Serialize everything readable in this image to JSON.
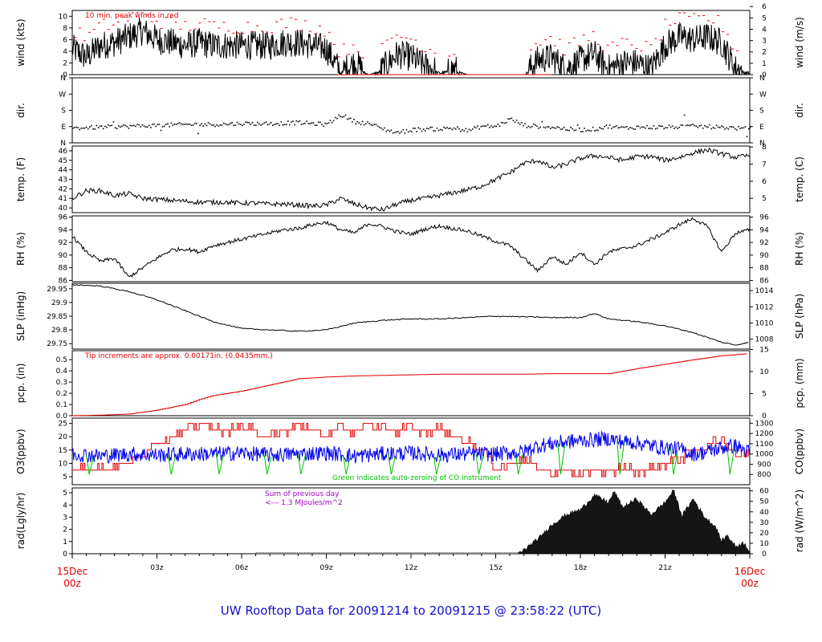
{
  "footer": "UW Rooftop Data for 20091214  to  20091215 @ 23:58:22  (UTC)",
  "x_axis": {
    "start_label": [
      "15Dec",
      "00z"
    ],
    "end_label": [
      "16Dec",
      "00z"
    ],
    "tick_labels": [
      "03z",
      "06z",
      "09z",
      "12z",
      "15z",
      "18z",
      "21z"
    ],
    "hours": [
      3,
      6,
      9,
      12,
      15,
      18,
      21
    ],
    "range_hours": [
      0,
      24
    ]
  },
  "colors": {
    "red": "#e00000",
    "blue": "#0000ee",
    "green": "#00c000",
    "purple": "#a000c0",
    "black": "#000000"
  },
  "chart_data": [
    {
      "id": "wind",
      "type": "line",
      "ylabel": "wind (kts)",
      "ylabel_right": "wind (m/s)",
      "ylim": [
        0,
        11
      ],
      "yticks": [
        0,
        2,
        4,
        6,
        8,
        10
      ],
      "yticks_right": [
        0,
        1,
        2,
        3,
        4,
        5,
        6
      ],
      "annotation": "10 min. peak winds in red",
      "series": [
        {
          "hours": [
            0,
            0.5,
            1,
            1.5,
            2,
            2.5,
            3,
            3.5,
            4,
            4.5,
            5,
            5.5,
            6,
            6.5,
            7,
            7.5,
            8,
            8.5,
            9,
            9.5,
            10,
            10.5,
            11,
            11.5,
            12,
            12.5,
            13,
            13.5,
            14,
            14.5,
            15,
            15.5,
            16,
            16.5,
            17,
            17.5,
            18,
            18.5,
            19,
            19.5,
            20,
            20.5,
            21,
            21.5,
            22,
            22.5,
            23,
            23.5,
            24
          ],
          "values": [
            4.5,
            3,
            5,
            5.5,
            6.5,
            7.5,
            6,
            5.5,
            5,
            5.5,
            5,
            5,
            5,
            5,
            5,
            5.5,
            5.5,
            5,
            4.5,
            0.5,
            2,
            0,
            1,
            3.5,
            3,
            1.5,
            0.5,
            1,
            0,
            0,
            0,
            0,
            0,
            2.5,
            3,
            1,
            2.5,
            3.5,
            1,
            2,
            2,
            1,
            5,
            6.5,
            6,
            6.5,
            5.5,
            1,
            0.5
          ]
        }
      ]
    },
    {
      "id": "dir",
      "type": "scatter",
      "ylabel": "dir.",
      "ylabel_right": "dir.",
      "ytick_labels": [
        "N",
        "E",
        "S",
        "W",
        "N"
      ],
      "series": [
        {
          "hours": [
            0,
            1,
            2,
            3,
            4,
            5,
            6,
            7,
            8,
            9,
            9.5,
            10,
            10.5,
            11,
            11.5,
            12,
            12.5,
            13,
            13.5,
            14,
            14.5,
            15,
            15.5,
            16,
            16.5,
            17,
            17.5,
            18,
            18.5,
            19,
            19.5,
            20,
            21,
            22,
            23,
            24
          ],
          "values": [
            85,
            90,
            95,
            100,
            105,
            105,
            110,
            110,
            115,
            105,
            160,
            120,
            110,
            80,
            60,
            75,
            80,
            80,
            85,
            70,
            95,
            95,
            135,
            100,
            95,
            90,
            80,
            75,
            80,
            95,
            85,
            90,
            90,
            95,
            90,
            80
          ]
        }
      ]
    },
    {
      "id": "temp",
      "type": "line",
      "ylabel": "temp. (F)",
      "ylabel_right": "temp. (C)",
      "ylim": [
        39.5,
        46.5
      ],
      "yticks": [
        40,
        41,
        42,
        43,
        44,
        45,
        46
      ],
      "yticks_right": [
        5,
        6,
        7,
        8
      ],
      "series": [
        {
          "hours": [
            0,
            0.5,
            1,
            1.5,
            2,
            2.5,
            3,
            3.5,
            4,
            4.5,
            5,
            5.5,
            6,
            6.5,
            7,
            7.5,
            8,
            8.5,
            9,
            9.5,
            10,
            10.5,
            11,
            11.5,
            12,
            12.5,
            13,
            13.5,
            14,
            14.5,
            15,
            15.5,
            16,
            16.5,
            17,
            17.5,
            18,
            18.5,
            19,
            19.5,
            20,
            20.5,
            21,
            21.5,
            22,
            22.5,
            23,
            23.5,
            24
          ],
          "values": [
            41,
            41.8,
            41.8,
            41.3,
            41.5,
            41,
            40.9,
            40.8,
            40.7,
            40.6,
            40.6,
            40.6,
            40.5,
            40.5,
            40.4,
            40.4,
            40.3,
            40.2,
            40.3,
            41,
            40.4,
            40,
            39.8,
            40.4,
            40.8,
            41,
            41.3,
            41.6,
            41.9,
            42.3,
            43,
            43.7,
            44.7,
            45,
            44.2,
            44.6,
            45.2,
            45.5,
            45.3,
            45,
            45.4,
            45.4,
            45,
            45.3,
            45.8,
            46.1,
            45.7,
            45.3,
            45.5
          ]
        }
      ]
    },
    {
      "id": "rh",
      "type": "line",
      "ylabel": "RH (%)",
      "ylabel_right": "RH (%)",
      "ylim": [
        85.8,
        96.2
      ],
      "yticks": [
        86,
        88,
        90,
        92,
        94,
        96
      ],
      "yticks_right": [
        86,
        88,
        90,
        92,
        94,
        96
      ],
      "series": [
        {
          "hours": [
            0,
            0.5,
            1,
            1.5,
            2,
            2.5,
            3,
            3.5,
            4,
            4.5,
            5,
            5.5,
            6,
            6.5,
            7,
            7.5,
            8,
            8.5,
            9,
            9.5,
            10,
            10.5,
            11,
            11.5,
            12,
            12.5,
            13,
            13.5,
            14,
            14.5,
            15,
            15.5,
            16,
            16.5,
            17,
            17.5,
            18,
            18.5,
            19,
            19.5,
            20,
            20.5,
            21,
            21.5,
            22,
            22.5,
            23,
            23.5,
            24
          ],
          "values": [
            93,
            90.5,
            89,
            89.5,
            86.5,
            88,
            89.5,
            90.8,
            91,
            90.5,
            91.5,
            92,
            92.5,
            93,
            93.5,
            94,
            94.2,
            94.8,
            95.2,
            94,
            93.5,
            95,
            94.5,
            93.7,
            93.3,
            94.1,
            94.6,
            94.2,
            93.8,
            93,
            92.2,
            91.5,
            89.5,
            87.5,
            89.8,
            88.5,
            90.5,
            88.5,
            90.5,
            91,
            91.5,
            92.5,
            93.5,
            94.8,
            95.8,
            94.5,
            90.5,
            93.5,
            94
          ]
        }
      ]
    },
    {
      "id": "slp",
      "type": "line",
      "ylabel": "SLP (inHg)",
      "ylabel_right": "SLP (hPa)",
      "ylim": [
        29.73,
        29.97
      ],
      "yticks": [
        29.75,
        29.8,
        29.85,
        29.9,
        29.95
      ],
      "yticks_right": [
        1008,
        1010,
        1012,
        1014
      ],
      "series": [
        {
          "hours": [
            0,
            1,
            2,
            3,
            4,
            5,
            6,
            7,
            8,
            9,
            10,
            11,
            12,
            13,
            14,
            15,
            16,
            17,
            18,
            18.5,
            19,
            20,
            21,
            22,
            23,
            23.5,
            24
          ],
          "values": [
            29.965,
            29.96,
            29.94,
            29.91,
            29.87,
            29.83,
            29.805,
            29.8,
            29.795,
            29.8,
            29.825,
            29.835,
            29.84,
            29.84,
            29.845,
            29.85,
            29.848,
            29.845,
            29.845,
            29.86,
            29.84,
            29.83,
            29.815,
            29.79,
            29.755,
            29.745,
            29.755
          ]
        }
      ]
    },
    {
      "id": "pcp",
      "type": "line",
      "ylabel": "pcp. (in)",
      "ylabel_right": "pcp. (mm)",
      "ylim": [
        0,
        0.58
      ],
      "yticks": [
        0.0,
        0.1,
        0.2,
        0.3,
        0.4,
        0.5
      ],
      "yticks_right": [
        0,
        5,
        10,
        15
      ],
      "annotation": "Tip increments are approx. 0.00171in. (0.0435mm.)",
      "series": [
        {
          "hours": [
            0,
            1,
            2,
            3,
            4,
            4.5,
            5,
            6,
            7,
            8,
            9,
            10,
            11,
            12,
            13,
            14,
            15,
            16,
            17,
            18,
            19,
            20,
            21,
            22,
            23,
            24
          ],
          "values": [
            0,
            0.005,
            0.015,
            0.05,
            0.1,
            0.145,
            0.18,
            0.22,
            0.275,
            0.33,
            0.345,
            0.355,
            0.36,
            0.365,
            0.37,
            0.37,
            0.37,
            0.37,
            0.375,
            0.375,
            0.375,
            0.42,
            0.46,
            0.5,
            0.535,
            0.555
          ]
        }
      ]
    },
    {
      "id": "o3co",
      "type": "line",
      "ylabel": "O3(ppbv)",
      "ylabel_right": "CO(ppbv)",
      "ylim": [
        2,
        27
      ],
      "yticks": [
        5,
        10,
        15,
        20,
        25
      ],
      "yticks_right": [
        800,
        900,
        1000,
        1100,
        1200,
        1300
      ],
      "annotation": "Green indicates auto-zeroing of CO instrument",
      "series": [
        {
          "name": "O3",
          "hours": [
            0,
            1,
            2,
            2.5,
            3,
            3.5,
            4,
            4.5,
            5,
            5.5,
            6,
            6.5,
            7,
            7.5,
            8,
            8.5,
            9,
            9.5,
            10,
            10.5,
            11,
            11.5,
            12,
            12.5,
            13,
            13.5,
            14,
            14.5,
            15,
            15.5,
            16,
            16.5,
            17,
            17.5,
            18,
            18.5,
            19,
            19.5,
            20,
            20.5,
            21,
            21.5,
            22,
            22.5,
            23,
            23.5,
            24
          ],
          "values": [
            8,
            8,
            10,
            14,
            18,
            20,
            22,
            25,
            23,
            22,
            24,
            22,
            20,
            22,
            24,
            23,
            20,
            24,
            22,
            25,
            23,
            22,
            24,
            21,
            23,
            20,
            18,
            15,
            8,
            10,
            12,
            8,
            6,
            8,
            5,
            8,
            6,
            9,
            7,
            8,
            10,
            12,
            14,
            17,
            19,
            14,
            13
          ]
        },
        {
          "name": "CO",
          "hours": [
            0,
            1,
            2,
            3,
            4,
            5,
            6,
            7,
            8,
            9,
            10,
            11,
            12,
            13,
            14,
            15,
            16,
            16.5,
            17,
            17.5,
            18,
            18.5,
            19,
            19.5,
            20,
            20.5,
            21,
            21.5,
            22,
            22.5,
            23,
            23.5,
            24
          ],
          "values": [
            1000,
            980,
            1000,
            990,
            1000,
            1000,
            1010,
            990,
            1000,
            1010,
            980,
            1000,
            1010,
            990,
            1000,
            1000,
            1020,
            1080,
            1100,
            1120,
            1130,
            1140,
            1150,
            1120,
            1110,
            1080,
            1060,
            1050,
            1000,
            1020,
            1060,
            1080,
            1010
          ]
        }
      ]
    },
    {
      "id": "rad",
      "type": "area",
      "ylabel": "rad(Lgly/hr)",
      "ylabel_right": "rad (W/m^2)",
      "ylim": [
        0,
        5.4
      ],
      "yticks": [
        0,
        1,
        2,
        3,
        4,
        5
      ],
      "yticks_right": [
        0,
        10,
        20,
        30,
        40,
        50,
        60
      ],
      "annotation_lines": [
        "Sum of previous day",
        "<--- 1.3 MJoules/m^2"
      ],
      "series": [
        {
          "hours": [
            0,
            15.8,
            16,
            16.5,
            17,
            17.5,
            18,
            18.5,
            19,
            19.2,
            19.5,
            20,
            20.5,
            21,
            21.3,
            21.6,
            22,
            22.4,
            22.8,
            23,
            23.2,
            23.5,
            23.8,
            24
          ],
          "values": [
            0,
            0,
            0.3,
            1.2,
            2.4,
            3.2,
            3.6,
            4.8,
            4.2,
            5.1,
            3.8,
            4.5,
            3.2,
            4.2,
            5.2,
            3.1,
            4.5,
            3.0,
            2.2,
            1.0,
            1.5,
            0.6,
            0.9,
            0.2
          ]
        }
      ]
    }
  ]
}
